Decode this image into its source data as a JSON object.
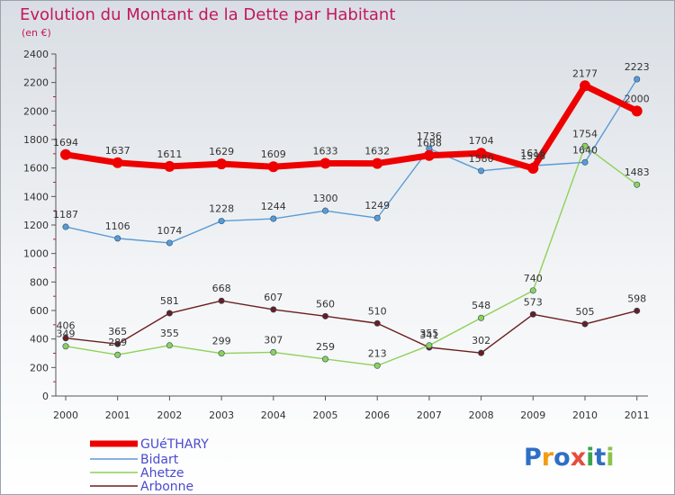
{
  "chart_data": {
    "type": "line",
    "title": "Evolution du Montant de la Dette par Habitant",
    "subtitle": "(en €)",
    "x": [
      "2000",
      "2001",
      "2002",
      "2003",
      "2004",
      "2005",
      "2006",
      "2007",
      "2008",
      "2009",
      "2010",
      "2011"
    ],
    "ylim": [
      0,
      2400
    ],
    "yticks": [
      "0",
      "200",
      "400",
      "600",
      "800",
      "1000",
      "1200",
      "1400",
      "1600",
      "1800",
      "2000",
      "2200",
      "2400"
    ],
    "grid": false,
    "legend_position": "bottom-left",
    "series": [
      {
        "name": "GUéTHARY",
        "color": "#ee0000",
        "values": [
          1694,
          1637,
          1611,
          1629,
          1609,
          1633,
          1632,
          1688,
          1704,
          1598,
          2177,
          2000
        ],
        "labels": [
          "1694",
          "1637",
          "1611",
          "1629",
          "1609",
          "1633",
          "1632",
          "1688",
          "1704",
          "1598",
          "2177",
          "2000"
        ]
      },
      {
        "name": "Bidart",
        "color": "#5a9bd5",
        "values": [
          1187,
          1106,
          1074,
          1228,
          1244,
          1300,
          1249,
          1736,
          1580,
          1616,
          1640,
          2223
        ],
        "labels": [
          "1187",
          "1106",
          "1074",
          "1228",
          "1244",
          "1300",
          "1249",
          "1736",
          "1580",
          "1616",
          "1640",
          "2223"
        ]
      },
      {
        "name": "Ahetze",
        "color": "#8fd158",
        "values": [
          349,
          289,
          355,
          299,
          307,
          259,
          213,
          355,
          548,
          740,
          1754,
          1483
        ],
        "labels": [
          "349",
          "289",
          "355",
          "299",
          "307",
          "259",
          "213",
          "355",
          "548",
          "740",
          "1754",
          "1483"
        ]
      },
      {
        "name": "Arbonne",
        "color": "#6b1e1e",
        "values": [
          406,
          365,
          581,
          668,
          607,
          560,
          510,
          341,
          302,
          573,
          505,
          598
        ],
        "labels": [
          "406",
          "365",
          "581",
          "668",
          "607",
          "560",
          "510",
          "341",
          "302",
          "573",
          "505",
          "598"
        ]
      }
    ]
  },
  "logo": {
    "text": "Proxiti"
  }
}
